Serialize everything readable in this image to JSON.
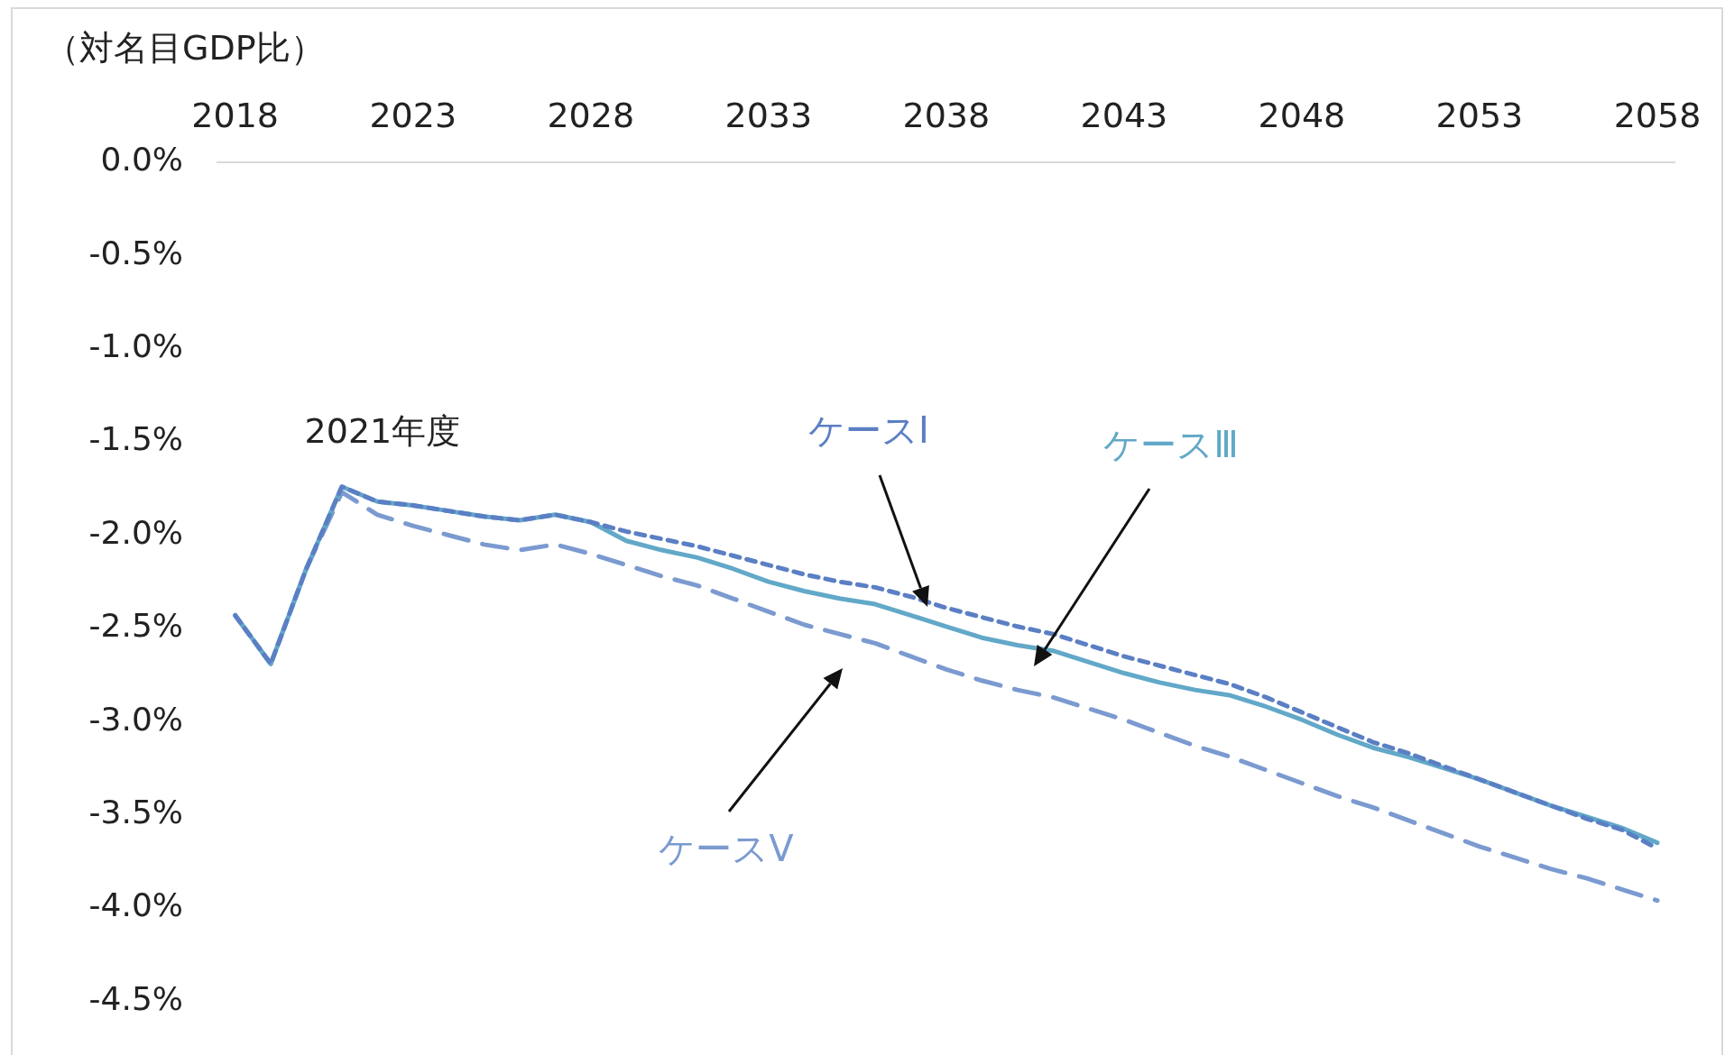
{
  "chart_data": {
    "type": "line",
    "ylabel": "（対名目GDP比）",
    "x": [
      2018,
      2019,
      2020,
      2021,
      2022,
      2023,
      2024,
      2025,
      2026,
      2027,
      2028,
      2029,
      2030,
      2031,
      2032,
      2033,
      2034,
      2035,
      2036,
      2037,
      2038,
      2039,
      2040,
      2041,
      2042,
      2043,
      2044,
      2045,
      2046,
      2047,
      2048,
      2049,
      2050,
      2051,
      2052,
      2053,
      2054,
      2055,
      2056,
      2057,
      2058
    ],
    "series": [
      {
        "name": "ケースⅠ",
        "color": "#5b7fc4",
        "line_style": "dotted",
        "values": [
          -2.43,
          -2.69,
          -2.18,
          -1.74,
          -1.82,
          -1.84,
          -1.87,
          -1.9,
          -1.92,
          -1.89,
          -1.93,
          -1.98,
          -2.02,
          -2.06,
          -2.11,
          -2.16,
          -2.21,
          -2.25,
          -2.28,
          -2.33,
          -2.39,
          -2.44,
          -2.49,
          -2.53,
          -2.59,
          -2.65,
          -2.7,
          -2.75,
          -2.8,
          -2.87,
          -2.95,
          -3.03,
          -3.11,
          -3.17,
          -3.24,
          -3.31,
          -3.38,
          -3.45,
          -3.52,
          -3.58,
          -3.68
        ]
      },
      {
        "name": "ケースⅢ",
        "color": "#62a8c8",
        "line_style": "solid",
        "values": [
          -2.43,
          -2.69,
          -2.18,
          -1.74,
          -1.82,
          -1.84,
          -1.87,
          -1.9,
          -1.92,
          -1.89,
          -1.93,
          -2.03,
          -2.08,
          -2.12,
          -2.18,
          -2.25,
          -2.3,
          -2.34,
          -2.37,
          -2.43,
          -2.49,
          -2.55,
          -2.59,
          -2.62,
          -2.68,
          -2.74,
          -2.79,
          -2.83,
          -2.86,
          -2.92,
          -2.99,
          -3.07,
          -3.14,
          -3.19,
          -3.25,
          -3.31,
          -3.38,
          -3.45,
          -3.51,
          -3.57,
          -3.65
        ]
      },
      {
        "name": "ケースⅤ",
        "color": "#7b9ad0",
        "line_style": "dashed",
        "values": [
          -2.43,
          -2.69,
          -2.18,
          -1.77,
          -1.89,
          -1.95,
          -2.0,
          -2.05,
          -2.08,
          -2.05,
          -2.1,
          -2.16,
          -2.22,
          -2.27,
          -2.34,
          -2.41,
          -2.48,
          -2.53,
          -2.58,
          -2.65,
          -2.72,
          -2.78,
          -2.83,
          -2.87,
          -2.93,
          -2.99,
          -3.06,
          -3.13,
          -3.19,
          -3.26,
          -3.33,
          -3.4,
          -3.46,
          -3.53,
          -3.6,
          -3.67,
          -3.73,
          -3.79,
          -3.84,
          -3.9,
          -3.96
        ]
      }
    ],
    "xlim": [
      2017.5,
      2058.5
    ],
    "xticks": [
      2018,
      2023,
      2028,
      2033,
      2038,
      2043,
      2048,
      2053,
      2058
    ],
    "ylim": [
      -4.5,
      0
    ],
    "yticks": [
      {
        "value": 0,
        "label": "0.0%"
      },
      {
        "value": -0.5,
        "label": "-0.5%"
      },
      {
        "value": -1,
        "label": "-1.0%"
      },
      {
        "value": -1.5,
        "label": "-1.5%"
      },
      {
        "value": -2,
        "label": "-2.0%"
      },
      {
        "value": -2.5,
        "label": "-2.5%"
      },
      {
        "value": -3,
        "label": "-3.0%"
      },
      {
        "value": -3.5,
        "label": "-3.5%"
      },
      {
        "value": -4,
        "label": "-4.0%"
      },
      {
        "value": -4.5,
        "label": "-4.5%"
      }
    ],
    "annotations": [
      {
        "text": "2021年度",
        "x": 2021,
        "y": -1.74
      }
    ],
    "grid": false,
    "legend": false,
    "marker": "none"
  }
}
